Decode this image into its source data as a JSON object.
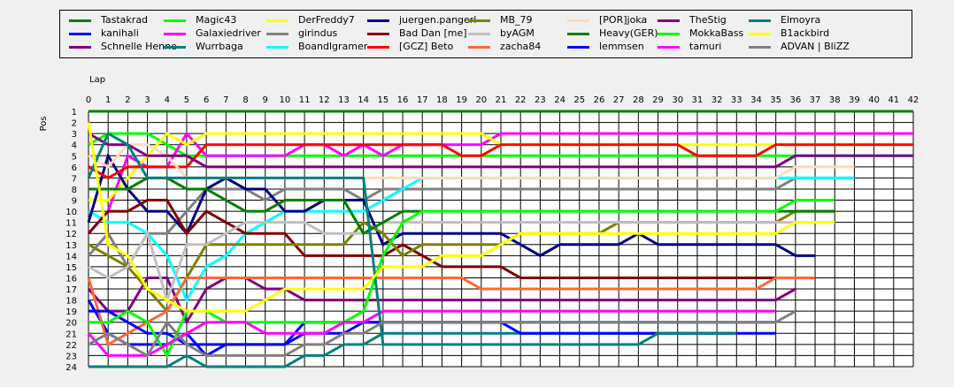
{
  "chart_data": {
    "type": "line",
    "title": "",
    "xlabel": "Lap",
    "ylabel": "Pos",
    "xlim": [
      0,
      42
    ],
    "ylim": [
      1,
      24
    ],
    "y_inverted": true,
    "grid": true,
    "legend_position": "top",
    "series": [
      {
        "name": "Tastakrad",
        "color": "#008000",
        "values": [
          1,
          1,
          1,
          1,
          1,
          1,
          1,
          1,
          1,
          1,
          1,
          1,
          1,
          1,
          1,
          1,
          1,
          1,
          1,
          1,
          1,
          1,
          1,
          1,
          1,
          1,
          1,
          1,
          1,
          1,
          1,
          1,
          1,
          1,
          1,
          1,
          1,
          1,
          1,
          1,
          1,
          1,
          1
        ]
      },
      {
        "name": "kanihali",
        "color": "#0000ff",
        "values": [
          18,
          21,
          22,
          22,
          22,
          21,
          23,
          22,
          22,
          22,
          22,
          21,
          21,
          21,
          20,
          20,
          20,
          20,
          20,
          20,
          20,
          20,
          20,
          20,
          20,
          20,
          20,
          20,
          20,
          20,
          20,
          20,
          20,
          20,
          20,
          20
        ]
      },
      {
        "name": "Schnelle Henne",
        "color": "#800080",
        "values": [
          17,
          19,
          19,
          16,
          16,
          20,
          17,
          16,
          16,
          17,
          17,
          18,
          18,
          18,
          18,
          18,
          18,
          18,
          18,
          18,
          18,
          18,
          18,
          18,
          18,
          18,
          18,
          18,
          18,
          18,
          18,
          18,
          18,
          18,
          18,
          18,
          17
        ]
      },
      {
        "name": "Magic43",
        "color": "#00ff00",
        "values": [
          4,
          3,
          3,
          3,
          4,
          5,
          5,
          5,
          5,
          5,
          5,
          5,
          5,
          5,
          5,
          5,
          5,
          5,
          5,
          5,
          5,
          5,
          5,
          5,
          5,
          5,
          5,
          5,
          5,
          5,
          5,
          5,
          5,
          5,
          5,
          5,
          5,
          5,
          5,
          5,
          5,
          5,
          5
        ]
      },
      {
        "name": "Galaxiedriver",
        "color": "#ff00ff",
        "values": [
          12,
          10,
          5,
          6,
          6,
          3,
          5,
          5,
          5,
          5,
          5,
          4,
          4,
          5,
          4,
          5,
          4,
          4,
          4,
          4,
          4,
          3,
          3,
          3,
          3,
          3,
          3,
          3,
          3,
          3,
          3,
          3,
          3,
          3,
          3,
          3,
          3,
          3,
          3,
          3,
          3,
          3,
          3
        ]
      },
      {
        "name": "Wurrbaga",
        "color": "#008080",
        "values": [
          24,
          24,
          24,
          24,
          24,
          23,
          24,
          24,
          24,
          24,
          24,
          23,
          23,
          22,
          22,
          21,
          21,
          21,
          21,
          21,
          21,
          21,
          21,
          21,
          21,
          21,
          21,
          21,
          21,
          21,
          21,
          21,
          21,
          21
        ]
      },
      {
        "name": "DerFreddy7",
        "color": "#ffff00",
        "values": [
          9,
          9,
          7,
          5,
          3,
          4,
          3,
          3,
          3,
          3,
          3,
          3,
          3,
          3,
          3,
          3,
          3,
          3,
          3,
          3,
          3,
          4,
          4,
          4,
          4,
          4,
          4,
          4,
          4,
          4,
          4,
          4,
          4,
          4,
          4,
          4,
          4,
          4,
          4,
          4,
          4,
          4,
          4
        ]
      },
      {
        "name": "girindus",
        "color": "#808080",
        "values": [
          14,
          12,
          15,
          12,
          12,
          10,
          8,
          8,
          8,
          9,
          8,
          8,
          8,
          8,
          9,
          8,
          8,
          8,
          8,
          8,
          8,
          8,
          8,
          8,
          8,
          8,
          8,
          8,
          8,
          8,
          8,
          8,
          8,
          8,
          8,
          8,
          7,
          7,
          7,
          7
        ]
      },
      {
        "name": "Boandlgramer",
        "color": "#00ffff",
        "values": [
          10,
          11,
          11,
          12,
          14,
          18,
          15,
          14,
          12,
          11,
          10,
          10,
          10,
          10,
          10,
          9,
          8,
          7,
          7,
          7,
          7,
          7,
          7,
          7,
          7,
          7,
          7,
          7,
          7,
          7,
          7,
          7,
          7,
          7,
          7,
          7,
          7,
          7,
          7,
          7
        ]
      },
      {
        "name": "juergen.pangerl",
        "color": "#000080",
        "values": [
          11,
          5,
          8,
          10,
          10,
          12,
          8,
          7,
          8,
          8,
          10,
          10,
          9,
          9,
          9,
          13,
          12,
          12,
          12,
          12,
          12,
          12,
          13,
          14,
          13,
          13,
          13,
          13,
          12,
          13,
          13,
          13,
          13,
          13,
          13,
          13,
          14,
          14
        ]
      },
      {
        "name": "Bad Dan [me]",
        "color": "#800000",
        "values": [
          12,
          10,
          10,
          9,
          9,
          12,
          10,
          11,
          12,
          12,
          12,
          14,
          14,
          14,
          14,
          14,
          13,
          14,
          15,
          15,
          15,
          15,
          16,
          16,
          16,
          16,
          16,
          16,
          16,
          16,
          16,
          16,
          16,
          16,
          16,
          16
        ]
      },
      {
        "name": "[GCZ] Beto",
        "color": "#ff0000",
        "values": [
          6,
          7,
          6,
          6,
          6,
          6,
          4,
          4,
          4,
          4,
          4,
          4,
          4,
          4,
          4,
          4,
          4,
          4,
          4,
          5,
          5,
          4,
          4,
          4,
          4,
          4,
          4,
          4,
          4,
          4,
          4,
          5,
          5,
          5,
          5,
          4,
          4,
          4,
          4,
          4,
          4,
          4,
          4
        ]
      },
      {
        "name": "MB_79",
        "color": "#808000",
        "values": [
          13,
          14,
          15,
          17,
          19,
          16,
          13,
          13,
          13,
          13,
          13,
          13,
          13,
          13,
          11,
          12,
          14,
          13,
          13,
          13,
          13,
          13,
          12,
          12,
          12,
          12,
          12,
          11,
          11,
          11,
          11,
          11,
          11,
          11,
          11,
          11,
          10,
          10,
          10
        ]
      },
      {
        "name": "byAGM",
        "color": "#c0c0c0",
        "values": [
          15,
          16,
          15,
          12,
          18,
          13,
          13,
          12,
          11,
          11,
          11,
          11,
          12,
          12,
          12,
          11,
          11,
          11,
          11,
          11,
          11,
          11,
          11,
          11,
          11,
          11,
          11,
          11,
          11,
          11,
          11,
          11,
          11,
          11,
          11,
          11,
          11,
          11,
          11
        ]
      },
      {
        "name": "zacha84",
        "color": "#ff6633",
        "values": [
          16,
          22,
          21,
          20,
          19,
          16,
          16,
          16,
          16,
          16,
          16,
          16,
          16,
          16,
          16,
          16,
          16,
          16,
          16,
          16,
          17,
          17,
          17,
          17,
          17,
          17,
          17,
          17,
          17,
          17,
          17,
          17,
          17,
          17,
          17,
          16,
          16,
          16
        ]
      },
      {
        "name": "[POR]joka",
        "color": "#ffdab9",
        "values": [
          5,
          6,
          4,
          4,
          5,
          7,
          7,
          7,
          7,
          7,
          7,
          7,
          7,
          7,
          7,
          7,
          7,
          7,
          7,
          7,
          7,
          7,
          7,
          7,
          7,
          7,
          7,
          7,
          7,
          7,
          7,
          7,
          7,
          7,
          7,
          7,
          6,
          6,
          6,
          6
        ]
      },
      {
        "name": "Heavy(GER)",
        "color": "#008000",
        "values": [
          8,
          8,
          8,
          7,
          7,
          8,
          8,
          9,
          10,
          10,
          9,
          9,
          9,
          9,
          12,
          11,
          10,
          10,
          10,
          10,
          10,
          10,
          10,
          10,
          10,
          10,
          10,
          10,
          10,
          10,
          10,
          10,
          10,
          10,
          10,
          10,
          10,
          10,
          10
        ]
      },
      {
        "name": "lemmsen",
        "color": "#0000ff",
        "values": [
          19,
          19,
          20,
          21,
          21,
          22,
          22,
          22,
          22,
          22,
          22,
          20,
          20,
          20,
          20,
          20,
          20,
          20,
          20,
          20,
          20,
          20,
          21,
          21,
          21,
          21,
          21,
          21,
          21,
          21,
          21,
          21,
          21,
          21,
          21,
          21
        ]
      },
      {
        "name": "TheStig",
        "color": "#800080",
        "values": [
          3,
          4,
          4,
          5,
          5,
          5,
          6,
          6,
          6,
          6,
          6,
          6,
          6,
          6,
          6,
          6,
          6,
          6,
          6,
          6,
          6,
          6,
          6,
          6,
          6,
          6,
          6,
          6,
          6,
          6,
          6,
          6,
          6,
          6,
          6,
          6,
          5,
          5,
          5,
          5,
          5,
          5,
          5
        ]
      },
      {
        "name": "MokkaBass",
        "color": "#00ff00",
        "values": [
          20,
          20,
          19,
          20,
          23,
          19,
          19,
          20,
          20,
          20,
          20,
          20,
          20,
          20,
          19,
          14,
          11,
          10,
          10,
          10,
          10,
          10,
          10,
          10,
          10,
          10,
          10,
          10,
          10,
          10,
          10,
          10,
          10,
          10,
          10,
          10,
          9,
          9,
          9
        ]
      },
      {
        "name": "tamuri",
        "color": "#ff00ff",
        "values": [
          21,
          23,
          23,
          23,
          22,
          21,
          20,
          20,
          20,
          21,
          21,
          21,
          21,
          20,
          20,
          19,
          19,
          19,
          19,
          19,
          19,
          19,
          19,
          19,
          19,
          19,
          19,
          19,
          19,
          19,
          19,
          19,
          19,
          19,
          19,
          19
        ]
      },
      {
        "name": "Elmoyra",
        "color": "#008080",
        "values": [
          7,
          3,
          4,
          7,
          7,
          7,
          7,
          7,
          7,
          7,
          7,
          7,
          7,
          7,
          7,
          22,
          22,
          22,
          22,
          22,
          22,
          22,
          22,
          22,
          22,
          22,
          22,
          22,
          22,
          21,
          21,
          21,
          21,
          21
        ]
      },
      {
        "name": "B1ackbird",
        "color": "#ffff00",
        "values": [
          2,
          13,
          14,
          17,
          18,
          19,
          19,
          19,
          19,
          18,
          17,
          17,
          17,
          17,
          17,
          15,
          15,
          15,
          14,
          14,
          14,
          13,
          12,
          12,
          12,
          12,
          12,
          12,
          12,
          12,
          12,
          12,
          12,
          12,
          12,
          12,
          11,
          11,
          11
        ]
      },
      {
        "name": "ADVAN | BliZZ",
        "color": "#808080",
        "values": [
          22,
          21,
          22,
          23,
          20,
          22,
          23,
          23,
          23,
          23,
          23,
          22,
          22,
          21,
          21,
          20,
          20,
          20,
          20,
          20,
          20,
          20,
          20,
          20,
          20,
          20,
          20,
          20,
          20,
          20,
          20,
          20,
          20,
          20,
          20,
          20,
          19
        ]
      }
    ]
  }
}
